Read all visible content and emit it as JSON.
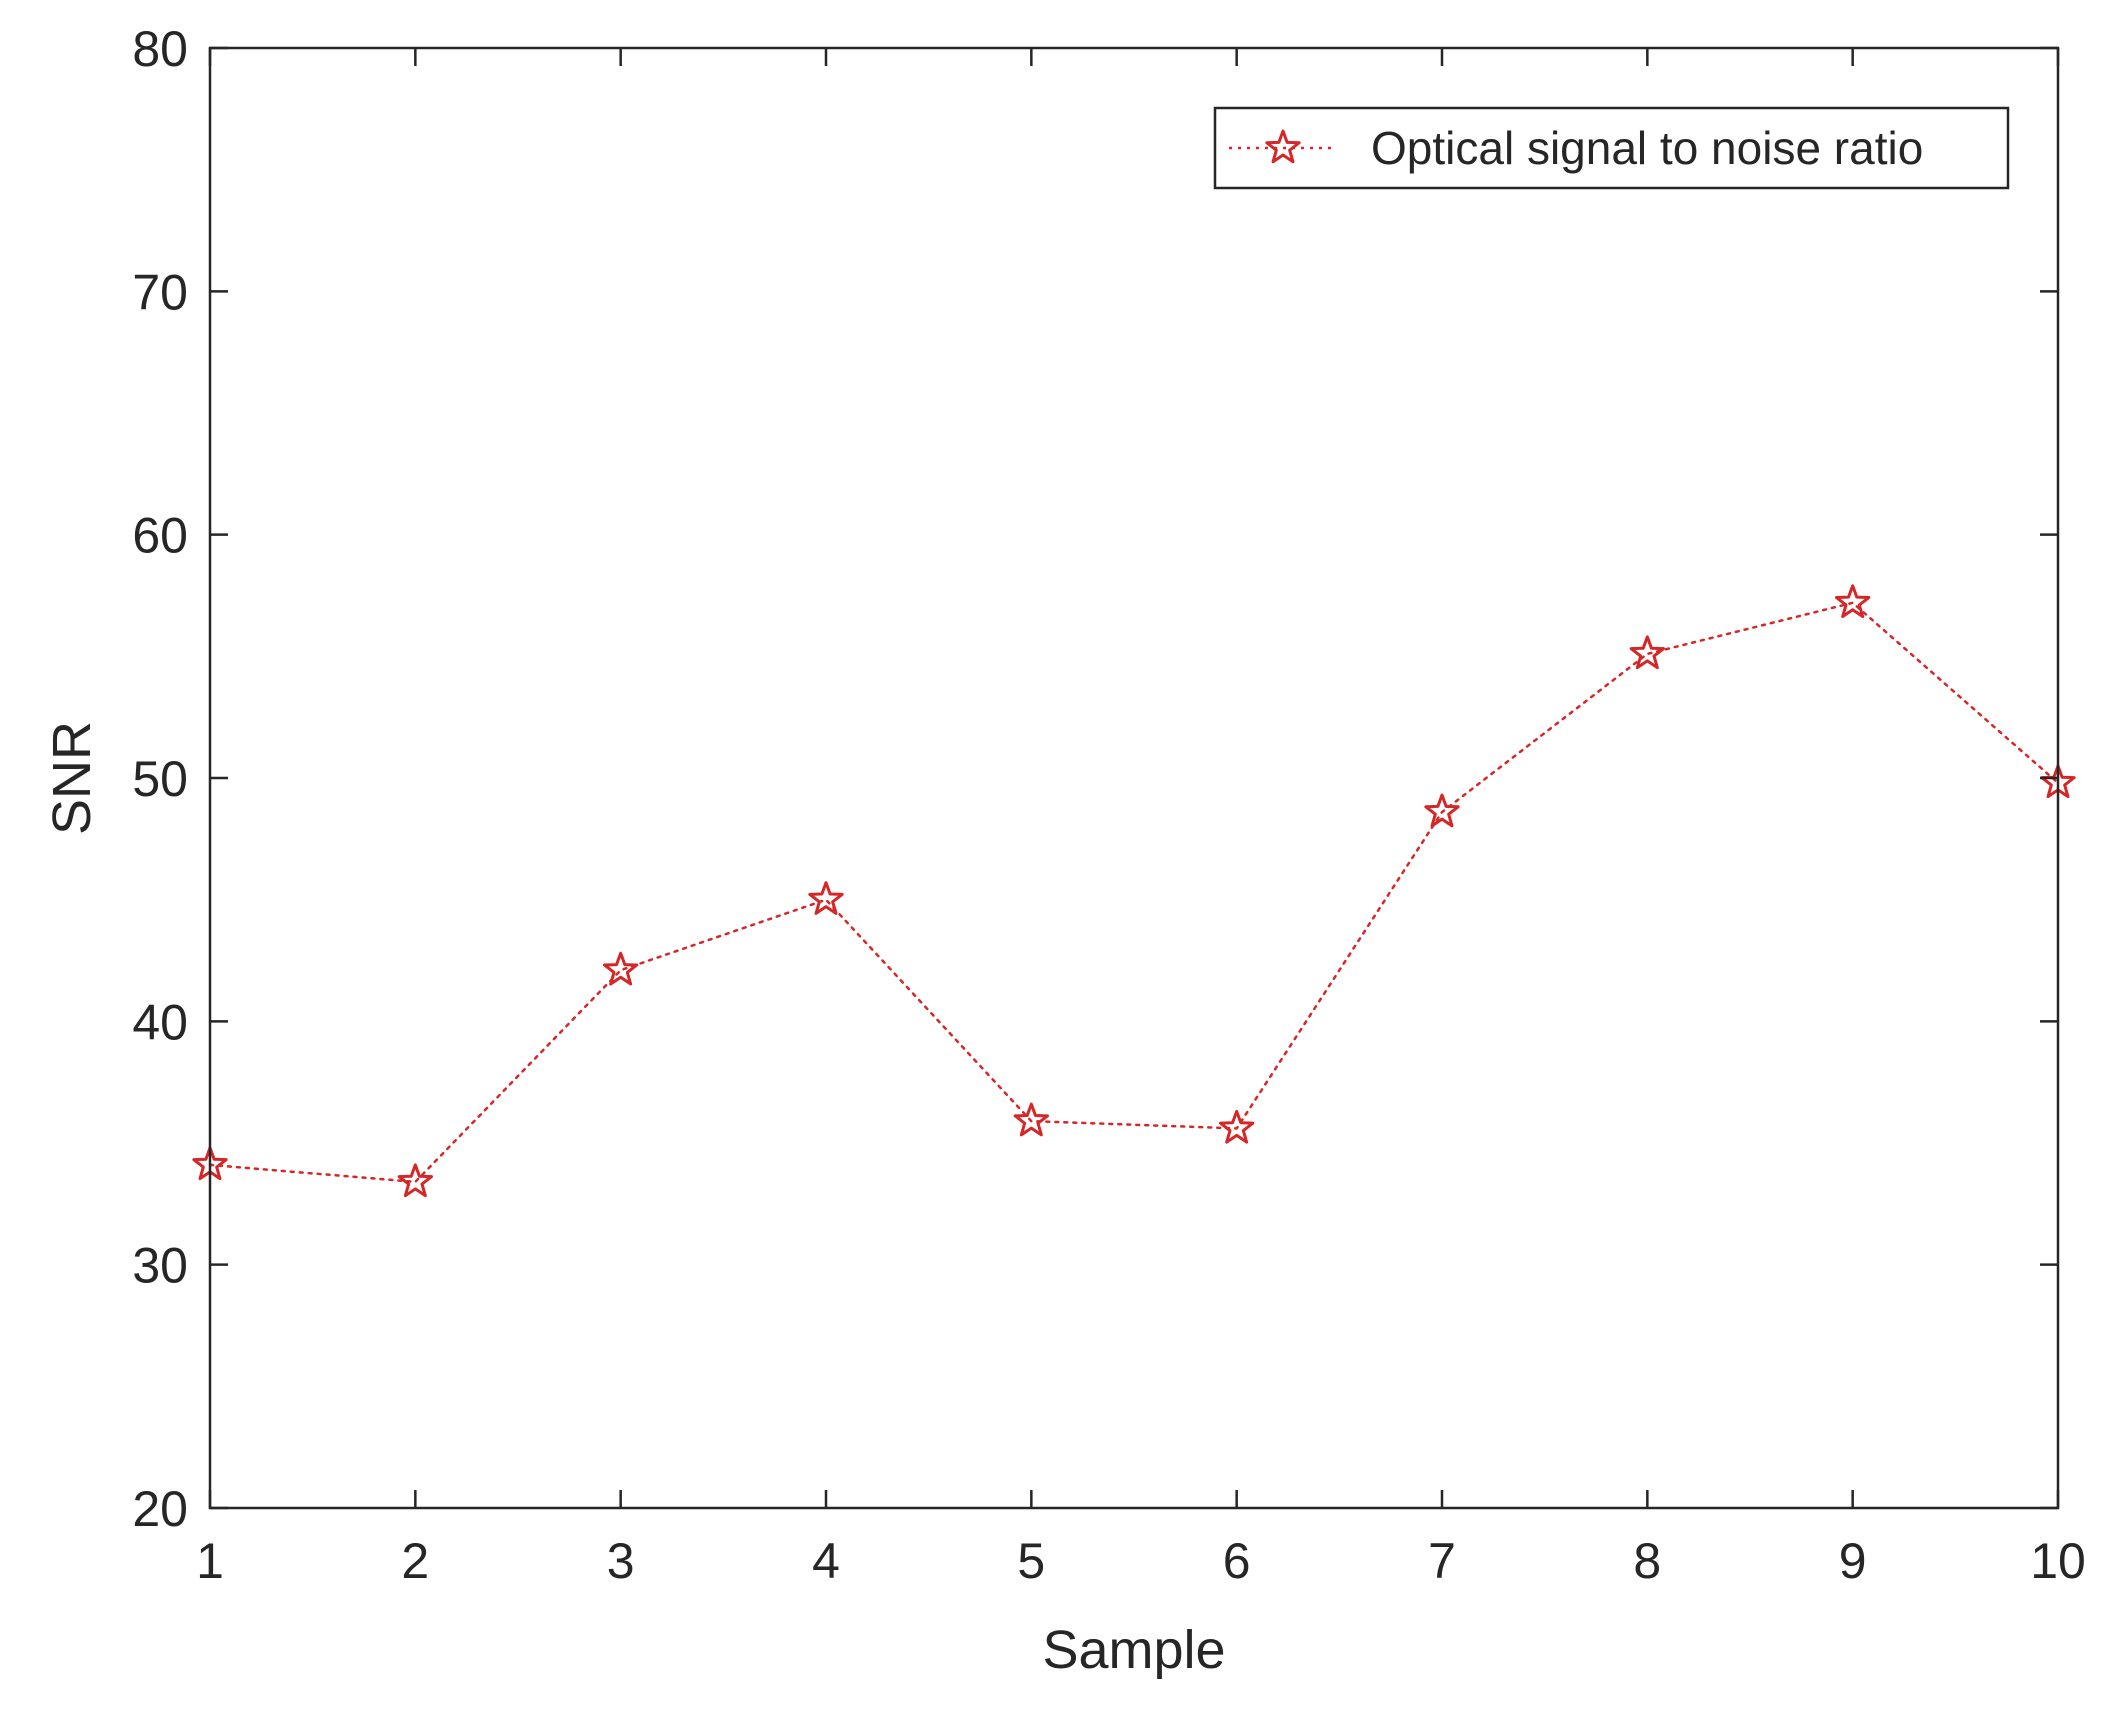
{
  "chart_data": {
    "type": "line",
    "title": "",
    "xlabel": "Sample",
    "ylabel": "SNR",
    "xlim": [
      1,
      10
    ],
    "ylim": [
      20,
      80
    ],
    "xticks": [
      "1",
      "2",
      "3",
      "4",
      "5",
      "6",
      "7",
      "8",
      "9",
      "10"
    ],
    "yticks": [
      "20",
      "30",
      "40",
      "50",
      "60",
      "70",
      "80"
    ],
    "grid": false,
    "legend_position": "top-right",
    "series": [
      {
        "name": "Optical signal to noise ratio",
        "color": "#d62728",
        "line_style": "dotted",
        "marker": "star-open",
        "x": [
          1,
          2,
          3,
          4,
          5,
          6,
          7,
          8,
          9,
          10
        ],
        "y": [
          34.1,
          33.4,
          42.1,
          45.0,
          35.9,
          35.6,
          48.6,
          55.1,
          57.2,
          49.8
        ]
      }
    ]
  }
}
